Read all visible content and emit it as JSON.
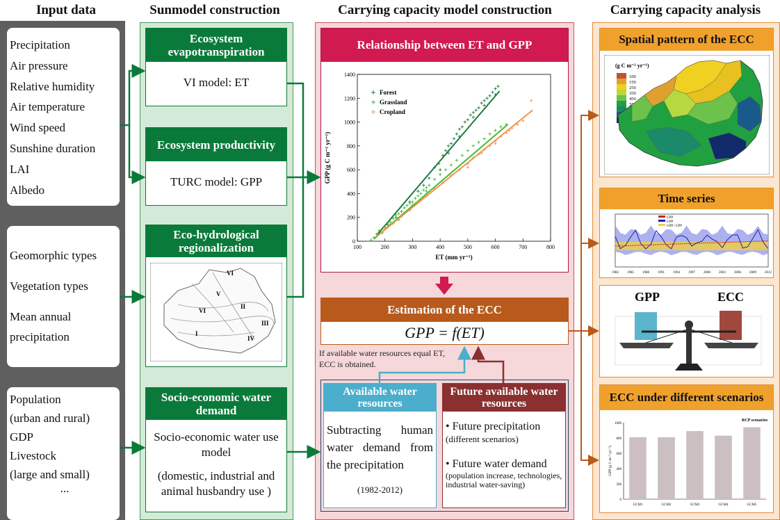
{
  "columns": {
    "input": "Input data",
    "submodel": "Sunmodel construction",
    "capacity_model": "Carrying capacity model construction",
    "capacity_analysis": "Carrying capacity analysis"
  },
  "inputs": {
    "group1": [
      "Precipitation",
      "Air pressure",
      "Relative humidity",
      "Air temperature",
      "Wind speed",
      "Sunshine duration",
      "LAI",
      "Albedo"
    ],
    "group2": [
      "Geomorphic types",
      "Vegetation types",
      "Mean annual",
      "precipitation"
    ],
    "group3": [
      "Population",
      "(urban and rural)",
      "GDP",
      "Livestock",
      "(large and small)",
      "..."
    ]
  },
  "submodels": {
    "et_title": "Ecosystem evapotranspiration",
    "et_body": "VI model: ET",
    "gpp_title": "Ecosystem productivity",
    "gpp_body": "TURC model: GPP",
    "region_title": "Eco-hydrological regionalization",
    "region_labels": [
      "VI",
      "V",
      "VI",
      "II",
      "III",
      "I",
      "IV"
    ],
    "water_title": "Socio-economic water demand",
    "water_body1": "Socio-economic water use model",
    "water_body2": "(domestic, industrial and animal husbandry use )"
  },
  "relationship": {
    "title": "Relationship between ET and GPP"
  },
  "chart_data": {
    "type": "scatter",
    "xlabel": "ET (mm yr⁻¹)",
    "ylabel": "GPP (g C m⁻² yr⁻¹)",
    "xlim": [
      100,
      800
    ],
    "ylim": [
      0,
      1400
    ],
    "xticks": [
      100,
      200,
      300,
      400,
      500,
      600,
      700,
      800
    ],
    "yticks": [
      0,
      200,
      400,
      600,
      800,
      1000,
      1200,
      1400
    ],
    "legend_position": "top-left",
    "series": [
      {
        "name": "Forest",
        "color": "#1e7a3c",
        "fit": [
          [
            170,
            50
          ],
          [
            615,
            1260
          ]
        ],
        "points": [
          [
            180,
            80
          ],
          [
            210,
            140
          ],
          [
            240,
            200
          ],
          [
            260,
            250
          ],
          [
            290,
            330
          ],
          [
            320,
            420
          ],
          [
            340,
            470
          ],
          [
            360,
            530
          ],
          [
            380,
            620
          ],
          [
            395,
            650
          ],
          [
            410,
            720
          ],
          [
            420,
            760
          ],
          [
            430,
            800
          ],
          [
            440,
            820
          ],
          [
            450,
            860
          ],
          [
            460,
            900
          ],
          [
            470,
            940
          ],
          [
            480,
            960
          ],
          [
            490,
            1000
          ],
          [
            500,
            1020
          ],
          [
            510,
            1060
          ],
          [
            520,
            1080
          ],
          [
            530,
            1100
          ],
          [
            540,
            1120
          ],
          [
            550,
            1160
          ],
          [
            560,
            1180
          ],
          [
            570,
            1200
          ],
          [
            580,
            1220
          ],
          [
            590,
            1250
          ],
          [
            600,
            1280
          ],
          [
            610,
            1300
          ],
          [
            400,
            600
          ],
          [
            430,
            740
          ],
          [
            470,
            880
          ],
          [
            520,
            1040
          ],
          [
            560,
            1140
          ],
          [
            600,
            1230
          ]
        ]
      },
      {
        "name": "Grassland",
        "color": "#44b833",
        "fit": [
          [
            160,
            20
          ],
          [
            645,
            980
          ]
        ],
        "points": [
          [
            150,
            10
          ],
          [
            160,
            30
          ],
          [
            170,
            60
          ],
          [
            180,
            90
          ],
          [
            190,
            70
          ],
          [
            200,
            120
          ],
          [
            210,
            150
          ],
          [
            220,
            160
          ],
          [
            230,
            190
          ],
          [
            240,
            220
          ],
          [
            250,
            230
          ],
          [
            260,
            250
          ],
          [
            270,
            280
          ],
          [
            280,
            300
          ],
          [
            290,
            320
          ],
          [
            300,
            330
          ],
          [
            310,
            360
          ],
          [
            320,
            380
          ],
          [
            330,
            400
          ],
          [
            340,
            430
          ],
          [
            350,
            450
          ],
          [
            360,
            470
          ],
          [
            380,
            520
          ],
          [
            400,
            560
          ],
          [
            420,
            600
          ],
          [
            440,
            640
          ],
          [
            460,
            680
          ],
          [
            480,
            720
          ],
          [
            500,
            760
          ],
          [
            520,
            800
          ],
          [
            540,
            830
          ],
          [
            560,
            860
          ],
          [
            580,
            900
          ],
          [
            600,
            930
          ],
          [
            620,
            960
          ],
          [
            640,
            980
          ],
          [
            250,
            180
          ],
          [
            300,
            300
          ],
          [
            350,
            420
          ]
        ]
      },
      {
        "name": "Cropland",
        "color": "#f0954a",
        "fit": [
          [
            170,
            40
          ],
          [
            735,
            1100
          ]
        ],
        "points": [
          [
            200,
            110
          ],
          [
            230,
            150
          ],
          [
            260,
            210
          ],
          [
            290,
            260
          ],
          [
            320,
            330
          ],
          [
            350,
            380
          ],
          [
            380,
            440
          ],
          [
            410,
            490
          ],
          [
            440,
            550
          ],
          [
            470,
            600
          ],
          [
            500,
            650
          ],
          [
            520,
            700
          ],
          [
            540,
            730
          ],
          [
            560,
            770
          ],
          [
            580,
            800
          ],
          [
            600,
            840
          ],
          [
            620,
            880
          ],
          [
            640,
            910
          ],
          [
            660,
            950
          ],
          [
            680,
            980
          ],
          [
            700,
            1010
          ],
          [
            730,
            1180
          ],
          [
            500,
            620
          ],
          [
            550,
            740
          ],
          [
            600,
            820
          ],
          [
            650,
            930
          ]
        ]
      }
    ]
  },
  "estimation": {
    "title": "Estimation of the ECC",
    "formula": "GPP = f(ET)",
    "note": "If available water resources equal ET, ECC is obtained."
  },
  "water_resources": {
    "available_title": "Available water resources",
    "available_body": "Subtracting human water demand from the precipitation",
    "available_years": "(1982-2012)",
    "future_title": "Future available water resources",
    "future_item1": "Future precipitation",
    "future_item1_note": "(different scenarios)",
    "future_item2": "Future water demand",
    "future_item2_note": "(population increase, technologies, industrial water-saving)"
  },
  "analysis": {
    "spatial_title": "Spatial pattern of the ECC",
    "spatial_unit": "(g C m⁻² yr⁻¹)",
    "spatial_legend": [
      "100",
      "150",
      "250",
      "350",
      "450",
      "550",
      "650",
      "750",
      "900"
    ],
    "spatial_colors": [
      "#c0532e",
      "#e0a030",
      "#f0d020",
      "#b8d840",
      "#6cc24a",
      "#20a040",
      "#1a8a6a",
      "#1a5a8a",
      "#102a6a"
    ],
    "time_title": "Time series",
    "time_years": [
      "1982",
      "1985",
      "1988",
      "1991",
      "1994",
      "1997",
      "2000",
      "2003",
      "2006",
      "2009",
      "2012"
    ],
    "time_legend": [
      "GPP",
      "GPP",
      "GPP / GPP"
    ],
    "balance_gpp": "GPP",
    "balance_ecc": "ECC",
    "scenario_title": "ECC under different scenarios",
    "scenario_legend": "RCP scenarios",
    "scenario_ylabel": "GPP (g C m⁻² yr⁻¹)",
    "scenario_ticks": [
      0,
      200,
      400,
      600,
      800,
      1000
    ],
    "scenario_categories": [
      "GCM1",
      "GCM2",
      "GCM3",
      "GCM4",
      "GCM5"
    ],
    "scenario_values": [
      810,
      810,
      890,
      830,
      940
    ]
  }
}
